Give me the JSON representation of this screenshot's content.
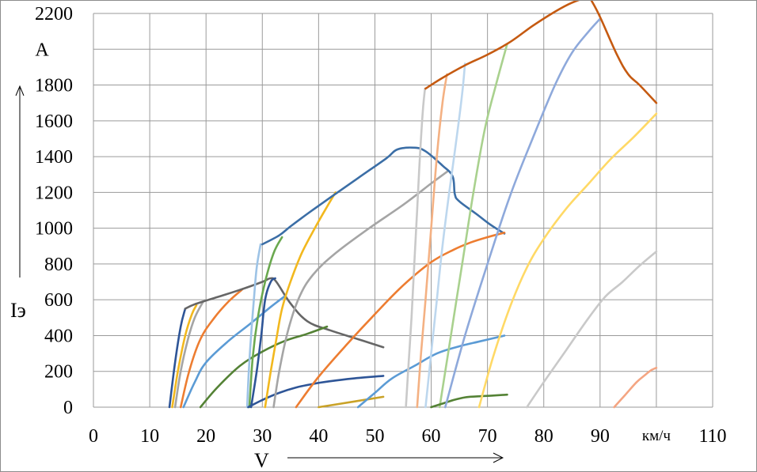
{
  "chart_data": {
    "type": "line",
    "title": "",
    "xlabel": "V",
    "ylabel": "Iэ",
    "y_unit": "A",
    "x_unit": "км/ч",
    "xlim": [
      0,
      110
    ],
    "ylim": [
      0,
      2200
    ],
    "x_ticks": [
      0,
      10,
      20,
      30,
      40,
      50,
      60,
      70,
      80,
      90,
      100,
      110
    ],
    "x_tick_labels": [
      "0",
      "10",
      "20",
      "30",
      "40",
      "50",
      "60",
      "70",
      "80",
      "90",
      "км/ч",
      "110"
    ],
    "y_ticks": [
      0,
      200,
      400,
      600,
      800,
      1000,
      1200,
      1400,
      1600,
      1800,
      2000,
      2200
    ],
    "y_tick_labels": [
      "0",
      "200",
      "400",
      "600",
      "800",
      "1000",
      "1200",
      "1400",
      "1600",
      "1800",
      "A",
      "2200"
    ],
    "grid": true,
    "legend": "none",
    "series": [
      {
        "color": "#2e5597",
        "x": [
          13.5,
          14.5,
          15.5,
          16.3
        ],
        "y": [
          0,
          250,
          450,
          550
        ]
      },
      {
        "color": "#f2b81e",
        "x": [
          14.0,
          15.0,
          16.3,
          17.5,
          18.3
        ],
        "y": [
          0,
          200,
          400,
          520,
          570
        ]
      },
      {
        "color": "#a5a5a5",
        "x": [
          14.5,
          15.5,
          16.8,
          18.0,
          19.5
        ],
        "y": [
          0,
          200,
          380,
          500,
          590
        ]
      },
      {
        "color": "#ed7d31",
        "x": [
          15.5,
          17.0,
          19.0,
          21.5,
          24.0,
          26.5
        ],
        "y": [
          0,
          200,
          380,
          500,
          590,
          660
        ]
      },
      {
        "color": "#666666",
        "x": [
          16.3,
          18.0,
          22.0,
          26.0,
          30.0,
          31.5,
          32.5,
          35.0,
          38.0,
          42.0,
          47.0,
          51.5
        ],
        "y": [
          550,
          575,
          615,
          655,
          700,
          720,
          700,
          580,
          480,
          430,
          380,
          335
        ]
      },
      {
        "color": "#5b9bd5",
        "x": [
          16.0,
          18.0,
          20.0,
          24.0,
          28.0,
          31.5,
          34.0
        ],
        "y": [
          0,
          140,
          250,
          370,
          470,
          560,
          620
        ]
      },
      {
        "color": "#548235",
        "x": [
          19.0,
          22.0,
          26.0,
          30.0,
          34.0,
          38.0,
          41.5
        ],
        "y": [
          0,
          110,
          230,
          310,
          370,
          410,
          450
        ]
      },
      {
        "color": "#9dc3e6",
        "x": [
          27.3,
          27.6,
          28.0,
          28.5,
          29.0,
          29.7
        ],
        "y": [
          0,
          200,
          400,
          600,
          780,
          910
        ]
      },
      {
        "color": "#6aa84f",
        "x": [
          27.7,
          28.3,
          29.2,
          30.5,
          32.0,
          33.5
        ],
        "y": [
          0,
          280,
          500,
          700,
          860,
          950
        ]
      },
      {
        "color": "#2e5597",
        "x": [
          28.0,
          29.0,
          29.8,
          30.5,
          31.5,
          32.3
        ],
        "y": [
          0,
          200,
          400,
          600,
          700,
          720
        ]
      },
      {
        "color": "#2e5597",
        "x": [
          27.5,
          30.0,
          33.0,
          36.0,
          39.0,
          42.0,
          46.0,
          51.5
        ],
        "y": [
          0,
          40,
          80,
          110,
          130,
          145,
          160,
          175
        ]
      },
      {
        "color": "#f2b81e",
        "x": [
          30.5,
          31.5,
          32.5,
          33.5,
          35.0,
          37.0,
          39.5,
          41.5,
          43.0
        ],
        "y": [
          0,
          200,
          380,
          550,
          700,
          860,
          1010,
          1120,
          1200
        ]
      },
      {
        "color": "#a5a5a5",
        "x": [
          32.0,
          33.0,
          34.5,
          36.5,
          39.0,
          43.0,
          49.0,
          55.0,
          60.0,
          63.0
        ],
        "y": [
          0,
          200,
          420,
          610,
          740,
          860,
          1000,
          1130,
          1250,
          1320
        ]
      },
      {
        "color": "#3b6ea6",
        "x": [
          30.0,
          33.0,
          35.0,
          38.0,
          42.0,
          47.0,
          52.0,
          54.0,
          57.0,
          59.0,
          62.0,
          63.8,
          64.2,
          65.0,
          68.0,
          70.5,
          73.0
        ],
        "y": [
          910,
          960,
          1010,
          1080,
          1170,
          1280,
          1390,
          1440,
          1450,
          1430,
          1350,
          1290,
          1190,
          1150,
          1080,
          1020,
          970
        ]
      },
      {
        "color": "#ed7d31",
        "x": [
          36.0,
          40.0,
          45.0,
          50.0,
          55.0,
          60.0,
          64.0,
          67.0,
          70.0,
          73.0
        ],
        "y": [
          0,
          170,
          350,
          520,
          680,
          810,
          880,
          920,
          950,
          975
        ]
      },
      {
        "color": "#c9a227",
        "x": [
          40.0,
          44.0,
          48.0,
          51.5
        ],
        "y": [
          0,
          20,
          40,
          58
        ]
      },
      {
        "color": "#5b9bd5",
        "x": [
          47.0,
          50.0,
          53.0,
          57.0,
          61.0,
          65.0,
          69.0,
          73.0
        ],
        "y": [
          0,
          80,
          160,
          230,
          300,
          340,
          370,
          400
        ]
      },
      {
        "color": "#c9c9c9",
        "x": [
          55.5,
          56.0,
          56.5,
          57.0,
          57.5,
          58.0,
          58.5,
          58.9
        ],
        "y": [
          0,
          250,
          500,
          800,
          1100,
          1400,
          1650,
          1780
        ]
      },
      {
        "color": "#f4b183",
        "x": [
          57.5,
          58.2,
          59.0,
          60.0,
          61.0,
          62.0,
          62.8
        ],
        "y": [
          0,
          300,
          600,
          1000,
          1400,
          1700,
          1860
        ]
      },
      {
        "color": "#bdd7ee",
        "x": [
          59.0,
          60.0,
          61.0,
          62.0,
          63.2,
          64.5,
          65.5,
          66.0
        ],
        "y": [
          0,
          300,
          600,
          900,
          1200,
          1500,
          1750,
          1920
        ]
      },
      {
        "color": "#a9d18e",
        "x": [
          61.5,
          63.0,
          64.5,
          66.0,
          67.5,
          69.5,
          71.5,
          73.5
        ],
        "y": [
          0,
          300,
          600,
          900,
          1200,
          1550,
          1800,
          2030
        ]
      },
      {
        "color": "#548235",
        "x": [
          60.0,
          62.0,
          64.0,
          66.0,
          68.0,
          71.0,
          73.5
        ],
        "y": [
          0,
          20,
          40,
          55,
          60,
          65,
          70
        ]
      },
      {
        "color": "#8ea9db",
        "x": [
          62.5,
          66.0,
          70.0,
          74.0,
          78.0,
          82.0,
          85.0,
          88.0,
          90.0
        ],
        "y": [
          0,
          400,
          800,
          1180,
          1500,
          1800,
          1980,
          2100,
          2170
        ]
      },
      {
        "color": "#c55a11",
        "x": [
          59.0,
          62.0,
          66.0,
          70.0,
          74.0,
          78.0,
          82.0,
          85.0,
          88.0,
          88.5,
          90.0,
          93.0,
          95.0,
          97.0,
          100.0
        ],
        "y": [
          1780,
          1840,
          1910,
          1970,
          2040,
          2130,
          2210,
          2260,
          2290,
          2270,
          2180,
          1970,
          1860,
          1800,
          1700
        ]
      },
      {
        "color": "#ffd966",
        "x": [
          68.5,
          71.0,
          74.0,
          77.0,
          80.0,
          84.0,
          88.0,
          92.0,
          96.0,
          100.0
        ],
        "y": [
          0,
          280,
          560,
          780,
          940,
          1110,
          1250,
          1390,
          1510,
          1640
        ]
      },
      {
        "color": "#c9c9c9",
        "x": [
          77.0,
          80.0,
          84.0,
          88.0,
          91.0,
          94.0,
          97.0,
          100.0
        ],
        "y": [
          0,
          140,
          320,
          500,
          620,
          700,
          790,
          870
        ]
      },
      {
        "color": "#f4a582",
        "x": [
          92.5,
          94.5,
          96.5,
          98.0,
          99.0,
          100.0
        ],
        "y": [
          0,
          70,
          140,
          180,
          205,
          220
        ]
      }
    ]
  }
}
